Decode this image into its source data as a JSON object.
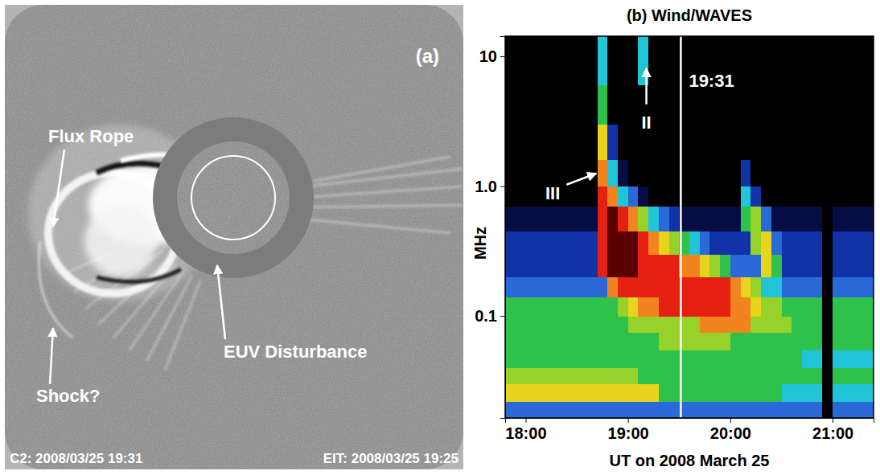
{
  "chart_data": [
    {
      "type": "image",
      "title": "(a)",
      "annotations": [
        {
          "text": "Flux Rope"
        },
        {
          "text": "Shock?"
        },
        {
          "text": "EUV Disturbance"
        }
      ],
      "captions": [
        "C2: 2008/03/25 19:31",
        "EIT: 2008/03/25 19:25"
      ]
    },
    {
      "type": "heatmap",
      "title": "(b) Wind/WAVES",
      "xlabel": "UT on 2008 March 25",
      "ylabel": "MHz",
      "log": "y",
      "xlim": [
        17.8,
        21.4
      ],
      "ylim": [
        0.0164,
        14.3
      ],
      "xticks": [
        {
          "value": 18,
          "label": "18:00"
        },
        {
          "value": 19,
          "label": "19:00"
        },
        {
          "value": 20,
          "label": "20:00"
        },
        {
          "value": 21,
          "label": "21:00"
        }
      ],
      "yticks": [
        0.1,
        {
          "value": 1,
          "label": "1.0"
        },
        10
      ],
      "zlim": [
        0,
        10
      ],
      "x_bins": [
        17.8,
        17.9,
        18,
        18.1,
        18.2,
        18.3,
        18.4,
        18.5,
        18.6,
        18.7,
        18.8,
        18.9,
        19,
        19.1,
        19.2,
        19.3,
        19.4,
        19.5,
        19.6,
        19.7,
        19.8,
        19.9,
        20,
        20.1,
        20.2,
        20.3,
        20.4,
        20.5,
        20.6,
        20.7,
        20.8,
        20.9,
        21,
        21.1,
        21.2,
        21.3,
        21.4
      ],
      "y_bins": [
        0.0164,
        0.022,
        0.03,
        0.04,
        0.055,
        0.075,
        0.1,
        0.14,
        0.2,
        0.3,
        0.45,
        0.7,
        1,
        1.6,
        3,
        6,
        14.3
      ],
      "z": [
        [
          3,
          3,
          3,
          3,
          3,
          3,
          3,
          3,
          3,
          3,
          3,
          3,
          3,
          3,
          3,
          3,
          3,
          3,
          3,
          3,
          3,
          3,
          3,
          3,
          3,
          3,
          3,
          3,
          3,
          3,
          3,
          0,
          3,
          3,
          3,
          3
        ],
        [
          7,
          7,
          7,
          7,
          7,
          7,
          7,
          7,
          7,
          7,
          7,
          7,
          7,
          7,
          7,
          5,
          5,
          5,
          5,
          5,
          5,
          5,
          5,
          5,
          5,
          5,
          5,
          4,
          4,
          4,
          4,
          0,
          4,
          4,
          4,
          4
        ],
        [
          6,
          6,
          6,
          6,
          6,
          6,
          6,
          6,
          6,
          6,
          6,
          6,
          6,
          5,
          5,
          5,
          5,
          5,
          5,
          5,
          5,
          5,
          5,
          5,
          5,
          5,
          5,
          5,
          5,
          5,
          5,
          0,
          5,
          5,
          5,
          5
        ],
        [
          5,
          5,
          5,
          5,
          5,
          5,
          5,
          5,
          5,
          5,
          5,
          5,
          5,
          5,
          5,
          5,
          5,
          5,
          5,
          5,
          5,
          5,
          5,
          5,
          5,
          5,
          5,
          5,
          5,
          4,
          4,
          0,
          4,
          4,
          4,
          4
        ],
        [
          5,
          5,
          5,
          5,
          5,
          5,
          5,
          5,
          5,
          5,
          5,
          5,
          5,
          5,
          5,
          6,
          6,
          6,
          6,
          6,
          6,
          6,
          5,
          5,
          5,
          5,
          5,
          5,
          5,
          5,
          5,
          0,
          5,
          5,
          5,
          5
        ],
        [
          5,
          5,
          5,
          5,
          5,
          5,
          5,
          5,
          5,
          5,
          5,
          5,
          6,
          6,
          6,
          6,
          6,
          6,
          6,
          8,
          8,
          8,
          8,
          8,
          6,
          6,
          6,
          6,
          5,
          5,
          5,
          0,
          5,
          5,
          5,
          5
        ],
        [
          5,
          5,
          5,
          5,
          5,
          5,
          5,
          5,
          5,
          5,
          5,
          6,
          7,
          8,
          8,
          9,
          9,
          9,
          9,
          9,
          9,
          9,
          8,
          8,
          7,
          6,
          6,
          5,
          5,
          5,
          5,
          0,
          5,
          5,
          5,
          5
        ],
        [
          3,
          3,
          3,
          3,
          3,
          3,
          3,
          3,
          3,
          3,
          8,
          9,
          9,
          9,
          9,
          9,
          9,
          9,
          9,
          9,
          9,
          9,
          8,
          7,
          6,
          4,
          4,
          3,
          3,
          3,
          3,
          0,
          3,
          3,
          3,
          3
        ],
        [
          2,
          2,
          2,
          2,
          2,
          2,
          2,
          2,
          2,
          9,
          10,
          10,
          10,
          9,
          9,
          9,
          9,
          8,
          8,
          7,
          6,
          5,
          3,
          3,
          3,
          7,
          5,
          2,
          2,
          2,
          2,
          0,
          2,
          2,
          2,
          2
        ],
        [
          2,
          2,
          2,
          2,
          2,
          2,
          2,
          2,
          2,
          9,
          10,
          10,
          10,
          9,
          8,
          7,
          6,
          5,
          4,
          3,
          2,
          2,
          2,
          2,
          6,
          7,
          3,
          2,
          2,
          2,
          2,
          0,
          2,
          2,
          2,
          2
        ],
        [
          1,
          1,
          1,
          1,
          1,
          1,
          1,
          1,
          1,
          9,
          10,
          9,
          8,
          6,
          4,
          3,
          2,
          1,
          1,
          1,
          1,
          1,
          1,
          5,
          6,
          3,
          1,
          1,
          1,
          1,
          1,
          0,
          1,
          1,
          1,
          1
        ],
        [
          0,
          0,
          0,
          0,
          0,
          0,
          0,
          0,
          0,
          9,
          8,
          4,
          3,
          1,
          0,
          0,
          0,
          0,
          0,
          0,
          0,
          0,
          0,
          4,
          2,
          0,
          0,
          0,
          0,
          0,
          0,
          0,
          0,
          0,
          0,
          0
        ],
        [
          0,
          0,
          0,
          0,
          0,
          0,
          0,
          0,
          0,
          8,
          4,
          1,
          0,
          0,
          0,
          0,
          0,
          0,
          0,
          0,
          0,
          0,
          0,
          2,
          0,
          0,
          0,
          0,
          0,
          0,
          0,
          0,
          0,
          0,
          0,
          0
        ],
        [
          0,
          0,
          0,
          0,
          0,
          0,
          0,
          0,
          0,
          7,
          2,
          0,
          0,
          0,
          0,
          0,
          0,
          0,
          0,
          0,
          0,
          0,
          0,
          0,
          0,
          0,
          0,
          0,
          0,
          0,
          0,
          0,
          0,
          0,
          0,
          0
        ],
        [
          0,
          0,
          0,
          0,
          0,
          0,
          0,
          0,
          0,
          5,
          0,
          0,
          0,
          0,
          0,
          0,
          0,
          0,
          0,
          0,
          0,
          0,
          0,
          0,
          0,
          0,
          0,
          0,
          0,
          0,
          0,
          0,
          0,
          0,
          0,
          0
        ],
        [
          0,
          0,
          0,
          0,
          0,
          0,
          0,
          0,
          0,
          4,
          0,
          0,
          0,
          4,
          0,
          0,
          0,
          0,
          0,
          0,
          0,
          0,
          0,
          0,
          0,
          0,
          0,
          0,
          0,
          0,
          0,
          0,
          0,
          0,
          0,
          0
        ]
      ],
      "annotations": [
        {
          "text": "III",
          "x": 18.73,
          "y": 1.29
        },
        {
          "text": "II",
          "x": 19.18,
          "y": 8.7
        }
      ],
      "vlines": [
        {
          "x": 19.5167,
          "label": "19:31"
        }
      ]
    }
  ]
}
